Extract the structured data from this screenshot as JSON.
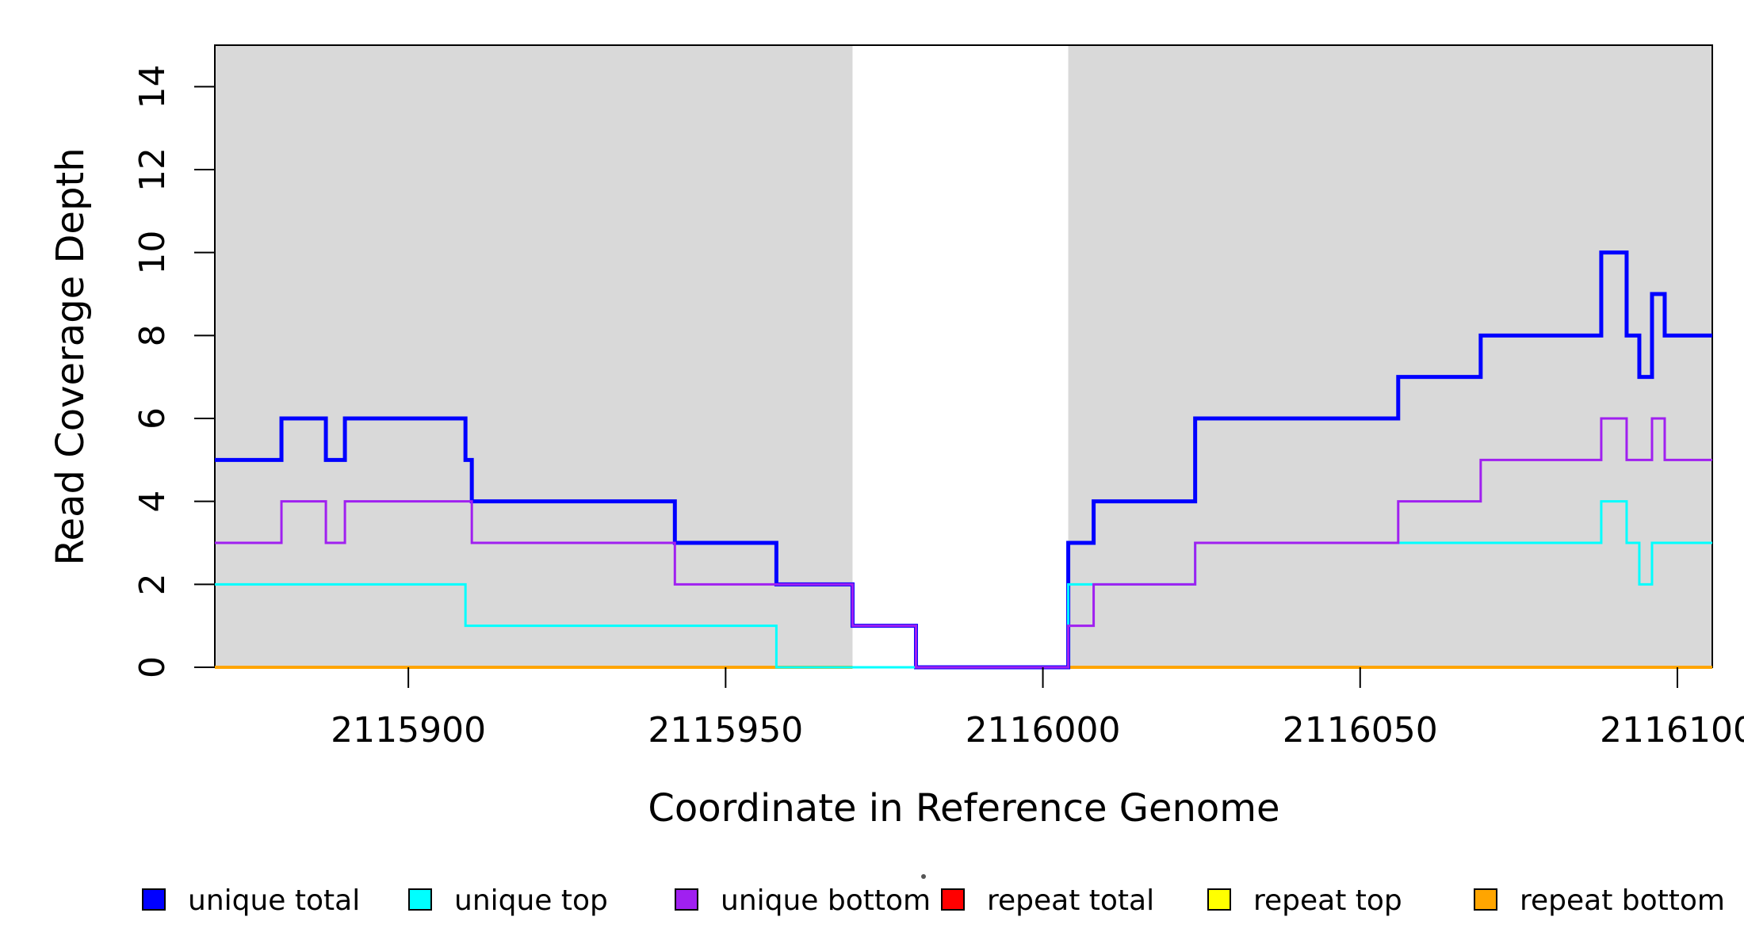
{
  "figure": {
    "x_axis_title": "Coordinate in Reference Genome",
    "y_axis_title": "Read Coverage Depth"
  },
  "misc": {
    "stray_dot": true
  },
  "chart_data": {
    "type": "line",
    "subtype": "step-coverage",
    "title": "",
    "xlabel": "Coordinate in Reference Genome",
    "ylabel": "Read Coverage Depth",
    "xlim": [
      2115869.5,
      2116105.5
    ],
    "ylim": [
      0,
      15
    ],
    "grid": false,
    "x_ticks": [
      2115900,
      2115950,
      2116000,
      2116050,
      2116100
    ],
    "x_tick_labels": [
      "2115900",
      "2115950",
      "2116000",
      "2116050",
      "2116100"
    ],
    "y_ticks": [
      0,
      2,
      4,
      6,
      8,
      10,
      12,
      14
    ],
    "y_tick_labels": [
      "0",
      "2",
      "4",
      "6",
      "8",
      "10",
      "12",
      "14"
    ],
    "plot_background": "#FFFFFF",
    "border_color": "#000000",
    "shaded_regions": {
      "color": "#D9D9D9",
      "intervals": [
        [
          2115869.5,
          2115970
        ],
        [
          2116004,
          2116105.5
        ]
      ]
    },
    "series": [
      {
        "name": "repeat total",
        "color": "#FF0000",
        "width": 3,
        "restrict_to_shaded": true,
        "steps": [
          [
            2115869.5,
            0
          ]
        ]
      },
      {
        "name": "repeat top",
        "color": "#FFFF00",
        "width": 3,
        "restrict_to_shaded": true,
        "steps": [
          [
            2115869.5,
            0
          ]
        ]
      },
      {
        "name": "repeat bottom",
        "color": "#FFA500",
        "width": 4,
        "restrict_to_shaded": true,
        "steps": [
          [
            2115869.5,
            0
          ]
        ]
      },
      {
        "name": "unique total",
        "color": "#0000FF",
        "width": 5,
        "restrict_to_shaded": false,
        "steps": [
          [
            2115869.5,
            5
          ],
          [
            2115880,
            6
          ],
          [
            2115887,
            5
          ],
          [
            2115890,
            6
          ],
          [
            2115909,
            5
          ],
          [
            2115910,
            4
          ],
          [
            2115942,
            3
          ],
          [
            2115958,
            2
          ],
          [
            2115970,
            1
          ],
          [
            2115980,
            0
          ],
          [
            2116004,
            3
          ],
          [
            2116008,
            4
          ],
          [
            2116024,
            6
          ],
          [
            2116056,
            7
          ],
          [
            2116069,
            8
          ],
          [
            2116088,
            10
          ],
          [
            2116092,
            8
          ],
          [
            2116094,
            7
          ],
          [
            2116096,
            9
          ],
          [
            2116098,
            8
          ]
        ]
      },
      {
        "name": "unique top",
        "color": "#00FFFF",
        "width": 3,
        "restrict_to_shaded": false,
        "steps": [
          [
            2115869.5,
            2
          ],
          [
            2115909,
            1
          ],
          [
            2115958,
            0
          ],
          [
            2116004,
            2
          ],
          [
            2116024,
            3
          ],
          [
            2116088,
            4
          ],
          [
            2116092,
            3
          ],
          [
            2116094,
            2
          ],
          [
            2116096,
            3
          ]
        ]
      },
      {
        "name": "unique bottom",
        "color": "#A020F0",
        "width": 3,
        "restrict_to_shaded": false,
        "steps": [
          [
            2115869.5,
            3
          ],
          [
            2115880,
            4
          ],
          [
            2115887,
            3
          ],
          [
            2115890,
            4
          ],
          [
            2115910,
            3
          ],
          [
            2115942,
            2
          ],
          [
            2115970,
            1
          ],
          [
            2115980,
            0
          ],
          [
            2116004,
            1
          ],
          [
            2116008,
            2
          ],
          [
            2116024,
            3
          ],
          [
            2116056,
            4
          ],
          [
            2116069,
            5
          ],
          [
            2116088,
            6
          ],
          [
            2116092,
            5
          ],
          [
            2116096,
            6
          ],
          [
            2116098,
            5
          ]
        ]
      }
    ],
    "legend": {
      "position": "bottom",
      "items": [
        {
          "label": "unique total",
          "color": "#0000FF"
        },
        {
          "label": "unique top",
          "color": "#00FFFF"
        },
        {
          "label": "unique bottom",
          "color": "#A020F0"
        },
        {
          "label": "repeat total",
          "color": "#FF0000"
        },
        {
          "label": "repeat top",
          "color": "#FFFF00"
        },
        {
          "label": "repeat bottom",
          "color": "#FFA500"
        }
      ]
    }
  }
}
